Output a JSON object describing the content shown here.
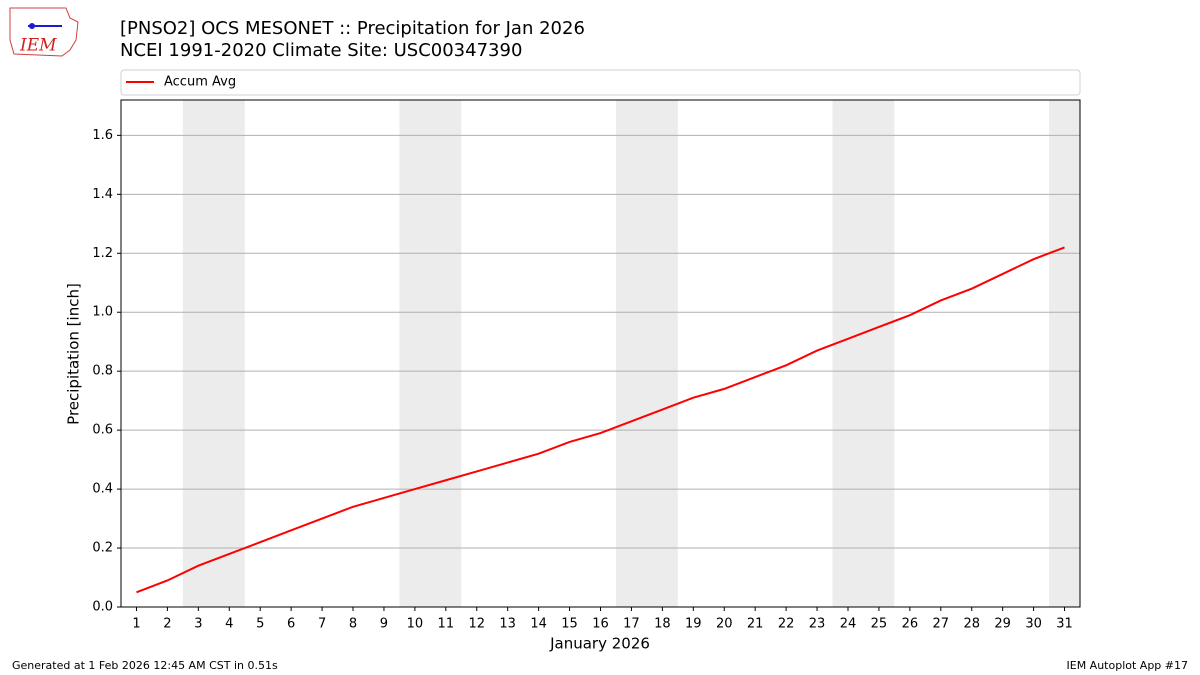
{
  "chart_data": {
    "type": "line",
    "title": "[PNSO2] OCS MESONET :: Precipitation for Jan 2026",
    "subtitle": "NCEI 1991-2020 Climate Site: USC00347390",
    "logo_text": "IEM",
    "x_label": "January 2026",
    "y_label": "Precipitation [inch]",
    "footer_left": "Generated at 1 Feb 2026 12:45 AM CST in 0.51s",
    "footer_right": "IEM Autoplot App #17",
    "x": [
      1,
      2,
      3,
      4,
      5,
      6,
      7,
      8,
      9,
      10,
      11,
      12,
      13,
      14,
      15,
      16,
      17,
      18,
      19,
      20,
      21,
      22,
      23,
      24,
      25,
      26,
      27,
      28,
      29,
      30,
      31
    ],
    "series": [
      {
        "name": "Accum Avg",
        "color": "#ff0000",
        "values": [
          0.05,
          0.09,
          0.14,
          0.18,
          0.22,
          0.26,
          0.3,
          0.34,
          0.37,
          0.4,
          0.43,
          0.46,
          0.49,
          0.52,
          0.56,
          0.59,
          0.63,
          0.67,
          0.71,
          0.74,
          0.78,
          0.82,
          0.87,
          0.91,
          0.95,
          0.99,
          1.04,
          1.08,
          1.13,
          1.18,
          1.22
        ]
      }
    ],
    "shaded_spans": [
      [
        2.5,
        4.5
      ],
      [
        9.5,
        11.5
      ],
      [
        16.5,
        18.5
      ],
      [
        23.5,
        25.5
      ],
      [
        30.5,
        31.5
      ]
    ],
    "shade_color": "#ececec",
    "xlim": [
      0.5,
      31.5
    ],
    "xticks": [
      1,
      2,
      3,
      4,
      5,
      6,
      7,
      8,
      9,
      10,
      11,
      12,
      13,
      14,
      15,
      16,
      17,
      18,
      19,
      20,
      21,
      22,
      23,
      24,
      25,
      26,
      27,
      28,
      29,
      30,
      31
    ],
    "ylim": [
      0,
      1.72
    ],
    "yticks": [
      {
        "value": 0,
        "label": "0.0"
      },
      {
        "value": 0.2,
        "label": "0.2"
      },
      {
        "value": 0.4,
        "label": "0.4"
      },
      {
        "value": 0.6,
        "label": "0.6"
      },
      {
        "value": 0.8,
        "label": "0.8"
      },
      {
        "value": 1.0,
        "label": "1.0"
      },
      {
        "value": 1.2,
        "label": "1.2"
      },
      {
        "value": 1.4,
        "label": "1.4"
      },
      {
        "value": 1.6,
        "label": "1.6"
      }
    ],
    "grid": true
  }
}
